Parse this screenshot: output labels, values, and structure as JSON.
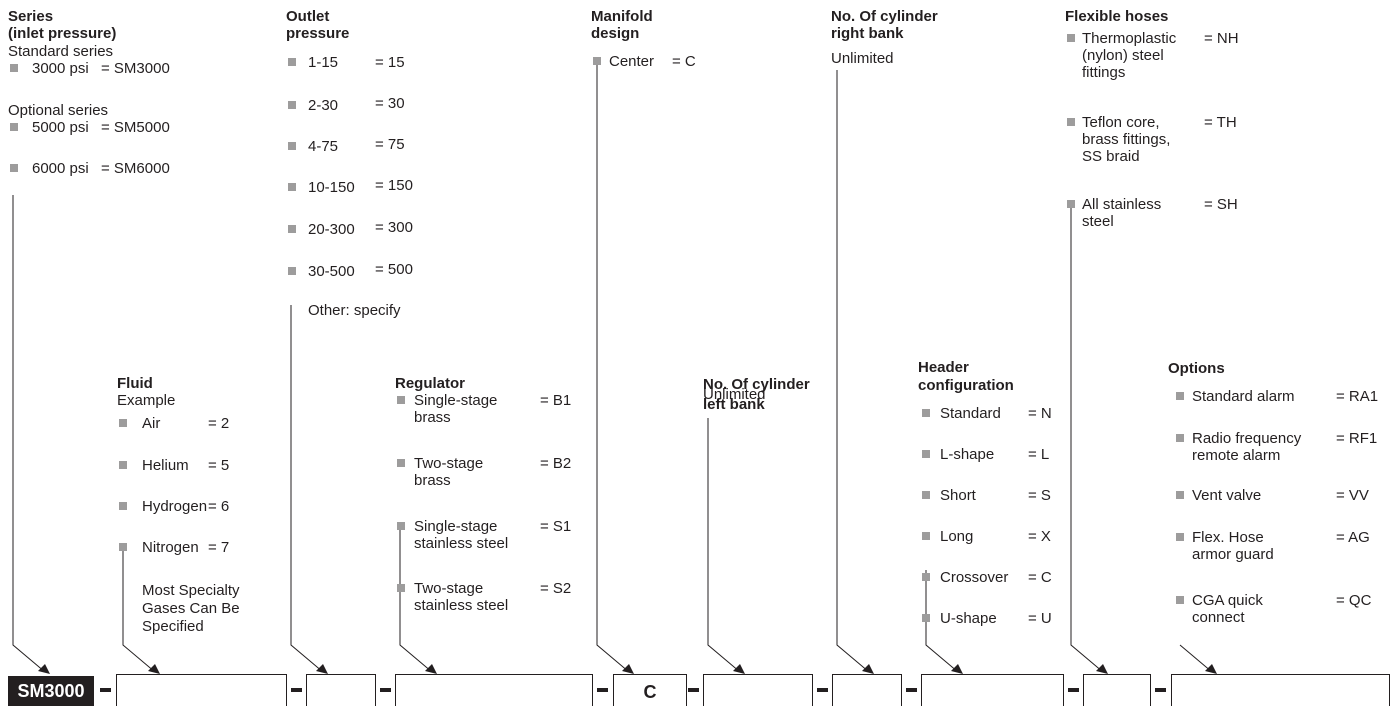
{
  "series": {
    "heading": [
      "Series",
      "(inlet pressure)"
    ],
    "standard_label": "Standard series",
    "standard_items": [
      {
        "label": "3000 psi",
        "code": "= SM3000"
      }
    ],
    "optional_label": "Optional series",
    "optional_items": [
      {
        "label": "5000 psi",
        "code": "= SM5000"
      },
      {
        "label": "6000 psi",
        "code": "= SM6000"
      }
    ]
  },
  "outlet": {
    "heading": [
      "Outlet",
      "pressure"
    ],
    "items": [
      {
        "label": "1-15",
        "code": "= 15"
      },
      {
        "label": "2-30",
        "code": "= 30"
      },
      {
        "label": "4-75",
        "code": "= 75"
      },
      {
        "label": "10-150",
        "code": "= 150"
      },
      {
        "label": "20-300",
        "code": "= 300"
      },
      {
        "label": "30-500",
        "code": "= 500"
      }
    ],
    "other": "Other: specify"
  },
  "manifold": {
    "heading": [
      "Manifold",
      "design"
    ],
    "items": [
      {
        "label": "Center",
        "code": "= C"
      }
    ]
  },
  "right_bank": {
    "heading": [
      "No. Of cylinder",
      "right bank"
    ],
    "value": "Unlimited"
  },
  "hoses": {
    "heading": "Flexible hoses",
    "items": [
      {
        "label": [
          "Thermoplastic",
          "(nylon) steel",
          "fittings"
        ],
        "code": "= NH"
      },
      {
        "label": [
          "Teflon core,",
          "brass fittings,",
          "SS braid"
        ],
        "code": "= TH"
      },
      {
        "label": [
          "All stainless",
          "steel"
        ],
        "code": "= SH"
      }
    ]
  },
  "fluid": {
    "heading": "Fluid",
    "sub": "Example",
    "items": [
      {
        "label": "Air",
        "code": "= 2"
      },
      {
        "label": "Helium",
        "code": "= 5"
      },
      {
        "label": "Hydrogen",
        "code": "= 6"
      },
      {
        "label": "Nitrogen",
        "code": "= 7"
      }
    ],
    "note": [
      "Most Specialty",
      "Gases Can Be",
      "Specified"
    ]
  },
  "regulator": {
    "heading": "Regulator",
    "items": [
      {
        "label": [
          "Single-stage",
          "brass"
        ],
        "code": "= B1"
      },
      {
        "label": [
          "Two-stage",
          "brass"
        ],
        "code": "= B2"
      },
      {
        "label": [
          "Single-stage",
          "stainless steel"
        ],
        "code": "= S1"
      },
      {
        "label": [
          "Two-stage",
          "stainless steel"
        ],
        "code": "= S2"
      }
    ]
  },
  "left_bank": {
    "heading": [
      "No. Of cylinder",
      "left bank"
    ],
    "value": "Unlimited"
  },
  "header_config": {
    "heading": [
      "Header",
      "configuration"
    ],
    "items": [
      {
        "label": "Standard",
        "code": "= N"
      },
      {
        "label": "L-shape",
        "code": "= L"
      },
      {
        "label": "Short",
        "code": "= S"
      },
      {
        "label": "Long",
        "code": "= X"
      },
      {
        "label": "Crossover",
        "code": "= C"
      },
      {
        "label": "U-shape",
        "code": "= U"
      }
    ]
  },
  "options": {
    "heading": "Options",
    "items": [
      {
        "label": [
          "Standard alarm"
        ],
        "code": "= RA1"
      },
      {
        "label": [
          "Radio frequency",
          "remote alarm"
        ],
        "code": "= RF1"
      },
      {
        "label": [
          "Vent valve"
        ],
        "code": "= VV"
      },
      {
        "label": [
          "Flex. Hose",
          "armor guard"
        ],
        "code": "= AG"
      },
      {
        "label": [
          "CGA quick",
          "connect"
        ],
        "code": "= QC"
      }
    ]
  },
  "code_bar": {
    "prefix": "SM3000",
    "manifold_value": "C"
  },
  "colors": {
    "text": "#231f20",
    "bullet": "#9d9c9c",
    "prefix_bg": "#231f20",
    "prefix_text": "#ffffff"
  }
}
